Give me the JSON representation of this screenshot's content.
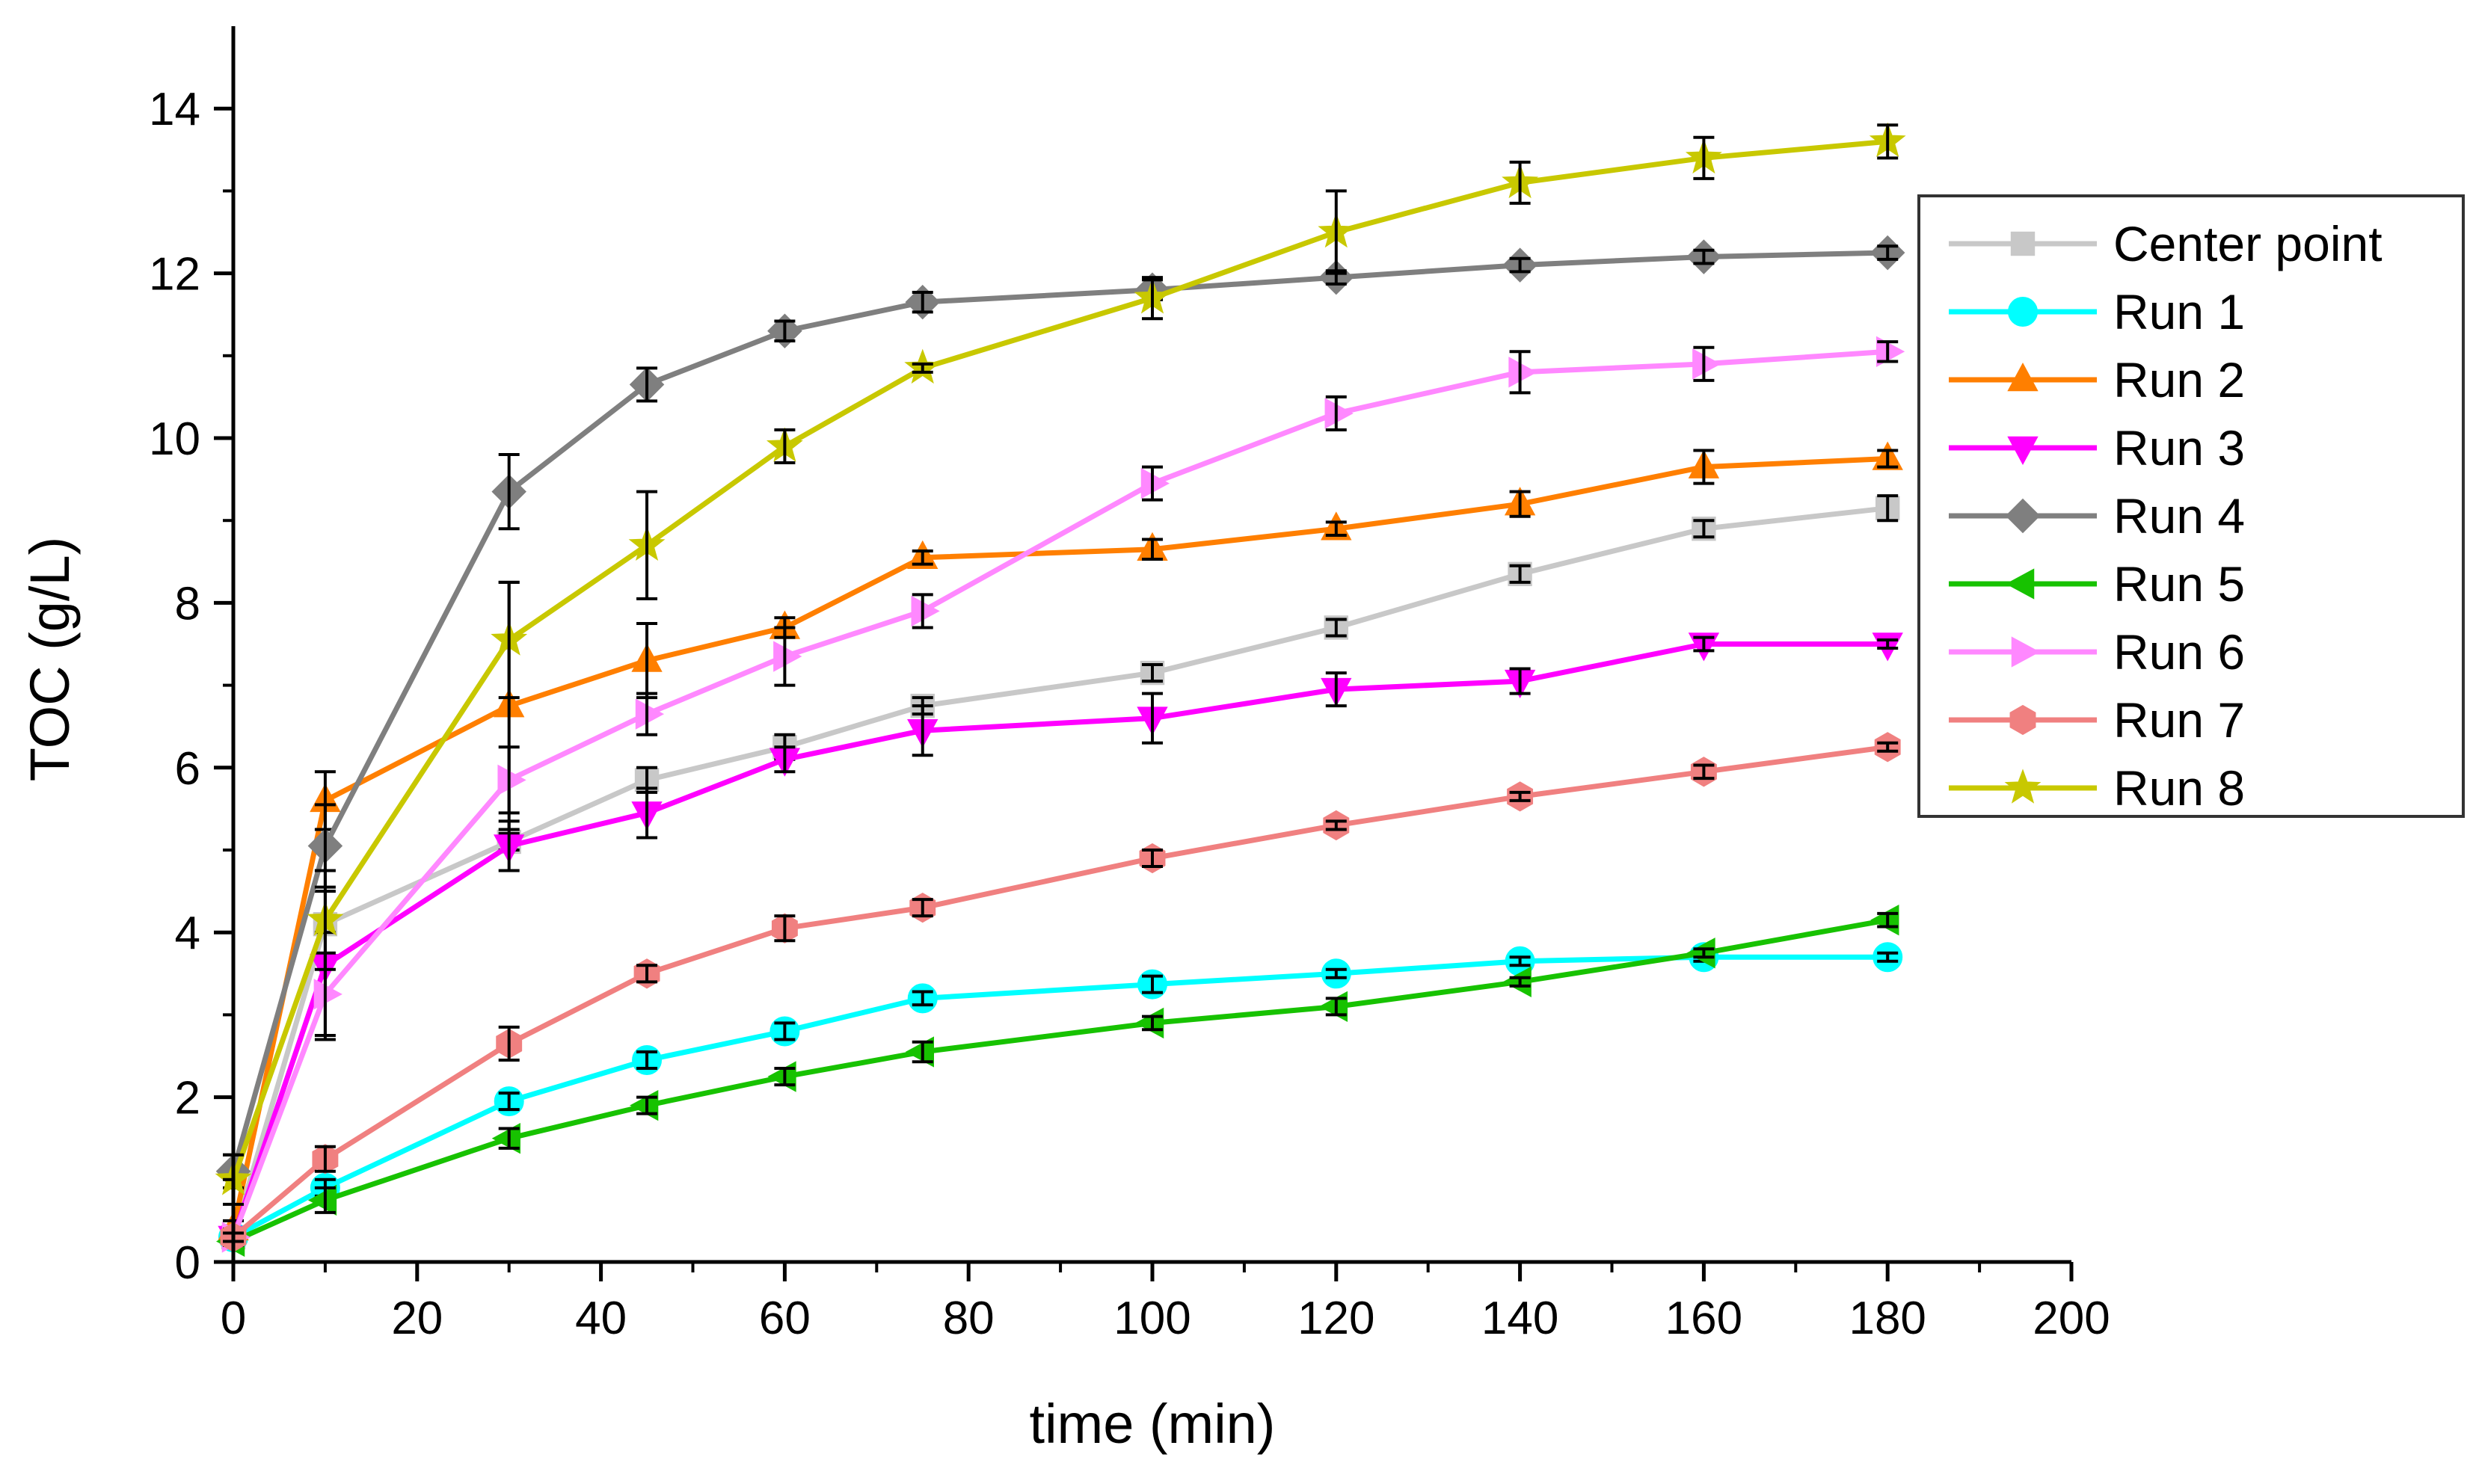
{
  "chart_data": {
    "type": "line",
    "title": "",
    "xlabel": "time (min)",
    "ylabel": "TOC (g/L)",
    "xlim": [
      0,
      200
    ],
    "ylim": [
      0,
      15
    ],
    "xticks": [
      0,
      20,
      40,
      60,
      80,
      100,
      120,
      140,
      160,
      180,
      200
    ],
    "yticks": [
      0,
      2,
      4,
      6,
      8,
      10,
      12,
      14
    ],
    "legend_position": "right",
    "x": [
      0,
      10,
      30,
      45,
      60,
      75,
      100,
      120,
      140,
      160,
      180
    ],
    "series": [
      {
        "name": "Center point",
        "color": "#c8c8c8",
        "marker": "square",
        "values": [
          0.3,
          4.1,
          5.1,
          5.85,
          6.25,
          6.75,
          7.15,
          7.7,
          8.35,
          8.9,
          9.15
        ],
        "errors": [
          0.1,
          0.1,
          0.1,
          0.15,
          0.15,
          0.1,
          0.1,
          0.1,
          0.1,
          0.1,
          0.15
        ]
      },
      {
        "name": "Run 1",
        "color": "#00ffff",
        "marker": "circle",
        "values": [
          0.3,
          0.9,
          1.95,
          2.45,
          2.8,
          3.2,
          3.37,
          3.5,
          3.65,
          3.7,
          3.7
        ],
        "errors": [
          0.08,
          0.1,
          0.1,
          0.1,
          0.1,
          0.08,
          0.1,
          0.05,
          0.05,
          0.05,
          0.05
        ]
      },
      {
        "name": "Run 2",
        "color": "#ff7f00",
        "marker": "triangle-up",
        "values": [
          0.4,
          5.6,
          6.75,
          7.3,
          7.7,
          8.55,
          8.65,
          8.9,
          9.2,
          9.65,
          9.75
        ],
        "errors": [
          0.1,
          0.35,
          1.5,
          0.45,
          0.12,
          0.08,
          0.12,
          0.08,
          0.15,
          0.2,
          0.1
        ]
      },
      {
        "name": "Run 3",
        "color": "#ff00ff",
        "marker": "triangle-down",
        "values": [
          0.3,
          3.6,
          5.05,
          5.45,
          6.1,
          6.45,
          6.6,
          6.95,
          7.05,
          7.5,
          7.5
        ],
        "errors": [
          0.1,
          0.9,
          0.3,
          0.3,
          0.15,
          0.3,
          0.3,
          0.2,
          0.15,
          0.08,
          0.05
        ]
      },
      {
        "name": "Run 4",
        "color": "#7f7f7f",
        "marker": "diamond",
        "values": [
          1.1,
          5.05,
          9.35,
          10.65,
          11.3,
          11.65,
          11.8,
          11.95,
          12.1,
          12.2,
          12.25
        ],
        "errors": [
          0.2,
          0.5,
          0.45,
          0.2,
          0.12,
          0.12,
          0.12,
          0.08,
          0.08,
          0.08,
          0.08
        ]
      },
      {
        "name": "Run 5",
        "color": "#17c200",
        "marker": "triangle-left",
        "values": [
          0.25,
          0.75,
          1.5,
          1.9,
          2.25,
          2.55,
          2.9,
          3.1,
          3.4,
          3.75,
          4.15
        ],
        "errors": [
          0.05,
          0.15,
          0.12,
          0.1,
          0.1,
          0.12,
          0.08,
          0.1,
          0.05,
          0.05,
          0.08
        ]
      },
      {
        "name": "Run 6",
        "color": "#ff88ff",
        "marker": "triangle-right",
        "values": [
          0.3,
          3.25,
          5.85,
          6.65,
          7.35,
          7.9,
          9.45,
          10.3,
          10.8,
          10.9,
          11.05
        ],
        "errors": [
          0.1,
          0.5,
          0.4,
          0.25,
          0.35,
          0.2,
          0.2,
          0.2,
          0.25,
          0.2,
          0.12
        ]
      },
      {
        "name": "Run 7",
        "color": "#f08080",
        "marker": "hexagon",
        "values": [
          0.3,
          1.25,
          2.65,
          3.5,
          4.05,
          4.3,
          4.9,
          5.3,
          5.65,
          5.95,
          6.25
        ],
        "errors": [
          0.05,
          0.15,
          0.2,
          0.1,
          0.15,
          0.1,
          0.1,
          0.05,
          0.05,
          0.08,
          0.05
        ]
      },
      {
        "name": "Run 8",
        "color": "#c8c800",
        "marker": "star",
        "values": [
          1.0,
          4.15,
          7.55,
          8.7,
          9.9,
          10.85,
          11.7,
          12.5,
          13.1,
          13.4,
          13.6
        ],
        "errors": [
          0.3,
          0.6,
          0.7,
          0.65,
          0.2,
          0.05,
          0.25,
          0.5,
          0.25,
          0.25,
          0.2
        ]
      }
    ]
  }
}
